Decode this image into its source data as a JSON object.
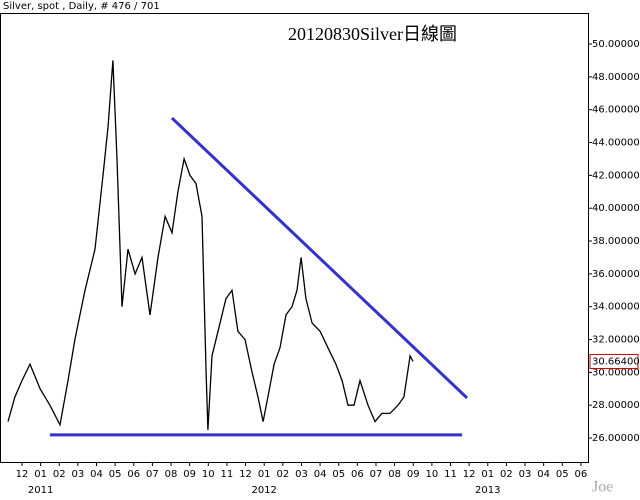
{
  "chart_data": {
    "type": "line",
    "header": "Silver, spot , Daily, # 476 / 701",
    "title": "20120830Silver日線圖",
    "watermark": "Joe",
    "xlim": [
      -1.18,
      30.38
    ],
    "ylim": [
      24.54,
      51.89
    ],
    "xticks": [
      {
        "value": 0,
        "label": "12"
      },
      {
        "value": 1,
        "label": "01"
      },
      {
        "value": 2,
        "label": "02"
      },
      {
        "value": 3,
        "label": "03"
      },
      {
        "value": 4,
        "label": "04"
      },
      {
        "value": 5,
        "label": "05"
      },
      {
        "value": 6,
        "label": "06"
      },
      {
        "value": 7,
        "label": "07"
      },
      {
        "value": 8,
        "label": "08"
      },
      {
        "value": 9,
        "label": "09"
      },
      {
        "value": 10,
        "label": "10"
      },
      {
        "value": 11,
        "label": "11"
      },
      {
        "value": 12,
        "label": "12"
      },
      {
        "value": 13,
        "label": "01"
      },
      {
        "value": 14,
        "label": "02"
      },
      {
        "value": 15,
        "label": "03"
      },
      {
        "value": 16,
        "label": "04"
      },
      {
        "value": 17,
        "label": "05"
      },
      {
        "value": 18,
        "label": "06"
      },
      {
        "value": 19,
        "label": "07"
      },
      {
        "value": 20,
        "label": "08"
      },
      {
        "value": 21,
        "label": "09"
      },
      {
        "value": 22,
        "label": "10"
      },
      {
        "value": 23,
        "label": "11"
      },
      {
        "value": 24,
        "label": "12"
      },
      {
        "value": 25,
        "label": "01"
      },
      {
        "value": 26,
        "label": "02"
      },
      {
        "value": 27,
        "label": "03"
      },
      {
        "value": 28,
        "label": "04"
      },
      {
        "value": 29,
        "label": "05"
      },
      {
        "value": 30,
        "label": "06"
      }
    ],
    "year_ticks": [
      {
        "value": 1,
        "label": "2011"
      },
      {
        "value": 13,
        "label": "2012"
      },
      {
        "value": 25,
        "label": "2013"
      }
    ],
    "yticks": [
      {
        "value": 26,
        "label": "26.00000"
      },
      {
        "value": 28,
        "label": "28.00000"
      },
      {
        "value": 30,
        "label": "30.00000"
      },
      {
        "value": 32,
        "label": "32.00000"
      },
      {
        "value": 34,
        "label": "34.00000"
      },
      {
        "value": 36,
        "label": "36.00000"
      },
      {
        "value": 38,
        "label": "38.00000"
      },
      {
        "value": 40,
        "label": "40.00000"
      },
      {
        "value": 42,
        "label": "42.00000"
      },
      {
        "value": 44,
        "label": "44.00000"
      },
      {
        "value": 46,
        "label": "46.00000"
      },
      {
        "value": 48,
        "label": "48.00000"
      },
      {
        "value": 50,
        "label": "50.00000"
      }
    ],
    "last_price": {
      "value": 30.664,
      "label": "30.66400",
      "color": "#cc0000"
    },
    "series": [
      {
        "color": "#000000",
        "x": [
          -0.75,
          -0.38,
          0,
          0.43,
          0.97,
          1.5,
          2.04,
          2.47,
          2.84,
          3.38,
          3.92,
          4.35,
          4.62,
          4.88,
          5.1,
          5.37,
          5.69,
          6.07,
          6.44,
          6.87,
          7.3,
          7.68,
          8.05,
          8.37,
          8.7,
          9.02,
          9.34,
          9.66,
          9.88,
          9.98,
          10.2,
          10.52,
          10.95,
          11.27,
          11.59,
          11.97,
          12.35,
          12.67,
          12.94,
          13.2,
          13.53,
          13.85,
          14.17,
          14.49,
          14.76,
          14.98,
          15.24,
          15.57,
          16.0,
          16.42,
          16.85,
          17.18,
          17.5,
          17.82,
          18.14,
          18.57,
          18.95,
          19.32,
          19.75,
          20.18,
          20.5,
          20.83,
          20.99
        ],
        "values": [
          27.0,
          28.5,
          29.5,
          30.5,
          29.0,
          28.0,
          26.8,
          29.5,
          32.0,
          35.0,
          37.5,
          42.0,
          45.0,
          49.0,
          43.0,
          34.0,
          37.5,
          36.0,
          37.0,
          33.5,
          37.0,
          39.5,
          38.5,
          41.0,
          43.0,
          42.0,
          41.5,
          39.5,
          30.0,
          26.5,
          31.0,
          32.5,
          34.5,
          35.0,
          32.5,
          32.0,
          30.0,
          28.5,
          27.0,
          28.5,
          30.5,
          31.5,
          33.5,
          34.0,
          35.0,
          37.0,
          34.5,
          33.0,
          32.5,
          31.5,
          30.5,
          29.5,
          28.0,
          28.0,
          29.5,
          28.0,
          27.0,
          27.5,
          27.5,
          28.0,
          28.5,
          31.0,
          30.664
        ]
      }
    ],
    "trend_lines": [
      {
        "color": "#3333cc",
        "x": [
          8.05,
          23.89
        ],
        "values": [
          45.49,
          28.44
        ]
      },
      {
        "color": "#3333cc",
        "x": [
          1.5,
          23.62
        ],
        "values": [
          26.19,
          26.19
        ]
      }
    ]
  }
}
